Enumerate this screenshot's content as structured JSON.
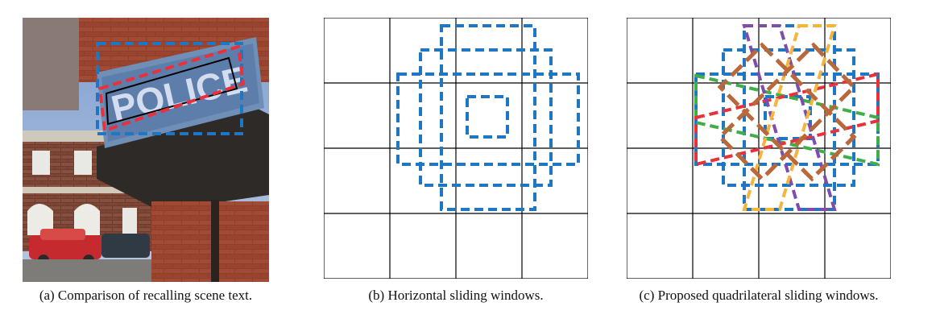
{
  "figure": {
    "panels": [
      {
        "id": "a",
        "caption": "(a) Comparison of recalling scene text.",
        "sign_text": "POLICE"
      },
      {
        "id": "b",
        "caption": "(b) Horizontal sliding windows."
      },
      {
        "id": "c",
        "caption": "(c) Proposed quadrilateral sliding windows."
      }
    ],
    "grid": {
      "rows": 4,
      "cols": 4
    },
    "colors": {
      "horizontal_window": "#1f77c4",
      "quad_red": "#e8313a",
      "quad_green": "#3fae49",
      "quad_orange": "#b8683a",
      "quad_purple": "#7c4dab",
      "quad_yellow": "#f5b43c",
      "ground_truth": "#000000"
    }
  }
}
